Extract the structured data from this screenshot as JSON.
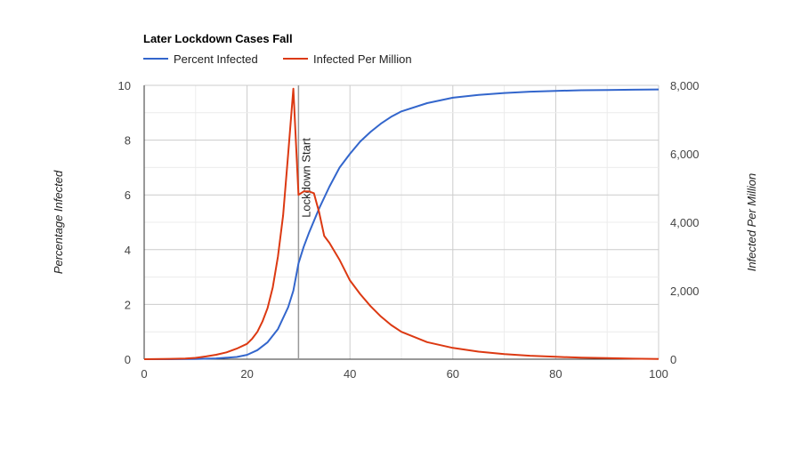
{
  "chart_data": {
    "type": "line",
    "title": "Later Lockdown Cases Fall",
    "xlabel": "",
    "ylabel": "Percentage Infected",
    "y2label": "Infected Per Million",
    "xlim": [
      0,
      100
    ],
    "ylim": [
      0,
      10
    ],
    "y2lim": [
      0,
      8000
    ],
    "x_ticks": [
      0,
      20,
      40,
      60,
      80,
      100
    ],
    "y_ticks": [
      0,
      2,
      4,
      6,
      8,
      10
    ],
    "y2_ticks": [
      0,
      2000,
      4000,
      6000,
      8000
    ],
    "x_tick_labels": [
      "0",
      "20",
      "40",
      "60",
      "80",
      "100"
    ],
    "y_tick_labels": [
      "0",
      "2",
      "4",
      "6",
      "8",
      "10"
    ],
    "y2_tick_labels": [
      "0",
      "2,000",
      "4,000",
      "6,000",
      "8,000"
    ],
    "grid": true,
    "legend_position": "top-left",
    "annotation": {
      "x": 30,
      "text": "Lockdown Start"
    },
    "series": [
      {
        "name": "Percent Infected",
        "axis": "left",
        "color": "#3366cc",
        "points": [
          [
            0,
            0
          ],
          [
            5,
            0
          ],
          [
            10,
            0.01
          ],
          [
            14,
            0.03
          ],
          [
            18,
            0.08
          ],
          [
            20,
            0.16
          ],
          [
            22,
            0.33
          ],
          [
            24,
            0.62
          ],
          [
            26,
            1.1
          ],
          [
            28,
            1.9
          ],
          [
            29,
            2.5
          ],
          [
            30,
            3.5
          ],
          [
            31,
            4.1
          ],
          [
            32,
            4.6
          ],
          [
            34,
            5.5
          ],
          [
            36,
            6.3
          ],
          [
            38,
            7.0
          ],
          [
            40,
            7.5
          ],
          [
            42,
            7.95
          ],
          [
            44,
            8.3
          ],
          [
            46,
            8.6
          ],
          [
            48,
            8.85
          ],
          [
            50,
            9.05
          ],
          [
            55,
            9.35
          ],
          [
            60,
            9.55
          ],
          [
            65,
            9.65
          ],
          [
            70,
            9.72
          ],
          [
            75,
            9.77
          ],
          [
            80,
            9.8
          ],
          [
            85,
            9.82
          ],
          [
            90,
            9.83
          ],
          [
            95,
            9.84
          ],
          [
            100,
            9.85
          ]
        ]
      },
      {
        "name": "Infected Per Million",
        "axis": "right",
        "color": "#dc3912",
        "points": [
          [
            0,
            0
          ],
          [
            5,
            10
          ],
          [
            8,
            20
          ],
          [
            10,
            40
          ],
          [
            12,
            80
          ],
          [
            14,
            130
          ],
          [
            16,
            200
          ],
          [
            18,
            310
          ],
          [
            20,
            450
          ],
          [
            21,
            600
          ],
          [
            22,
            800
          ],
          [
            23,
            1100
          ],
          [
            24,
            1500
          ],
          [
            25,
            2100
          ],
          [
            26,
            3000
          ],
          [
            27,
            4200
          ],
          [
            28,
            6000
          ],
          [
            29,
            7900
          ],
          [
            30,
            4800
          ],
          [
            31,
            4900
          ],
          [
            32,
            4900
          ],
          [
            33,
            4850
          ],
          [
            34,
            4300
          ],
          [
            35,
            3600
          ],
          [
            36,
            3400
          ],
          [
            38,
            2900
          ],
          [
            40,
            2300
          ],
          [
            42,
            1900
          ],
          [
            44,
            1550
          ],
          [
            46,
            1250
          ],
          [
            48,
            1000
          ],
          [
            50,
            800
          ],
          [
            55,
            500
          ],
          [
            60,
            330
          ],
          [
            65,
            220
          ],
          [
            70,
            150
          ],
          [
            75,
            100
          ],
          [
            80,
            70
          ],
          [
            85,
            45
          ],
          [
            90,
            30
          ],
          [
            95,
            15
          ],
          [
            100,
            5
          ]
        ]
      }
    ]
  }
}
